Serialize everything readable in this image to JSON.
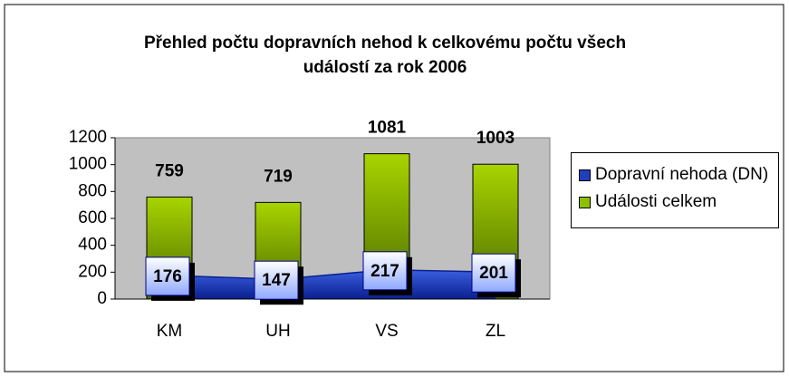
{
  "chart_data": {
    "type": "bar_area",
    "title": "Přehled počtu dopravních nehod k celkovému počtu všech událostí za rok 2006",
    "categories": [
      "KM",
      "UH",
      "VS",
      "ZL"
    ],
    "series": [
      {
        "name": "Dopravní nehoda (DN)",
        "color": "#1f3fbf",
        "type": "area",
        "values": [
          176,
          147,
          217,
          201
        ]
      },
      {
        "name": "Události celkem",
        "color": "#8fc000",
        "type": "bar",
        "values": [
          759,
          719,
          1081,
          1003
        ]
      }
    ],
    "ylim": [
      0,
      1200
    ],
    "yticks": [
      0,
      200,
      400,
      600,
      800,
      1000,
      1200
    ],
    "legend": "right",
    "plot_background": "#c0c0c0"
  }
}
